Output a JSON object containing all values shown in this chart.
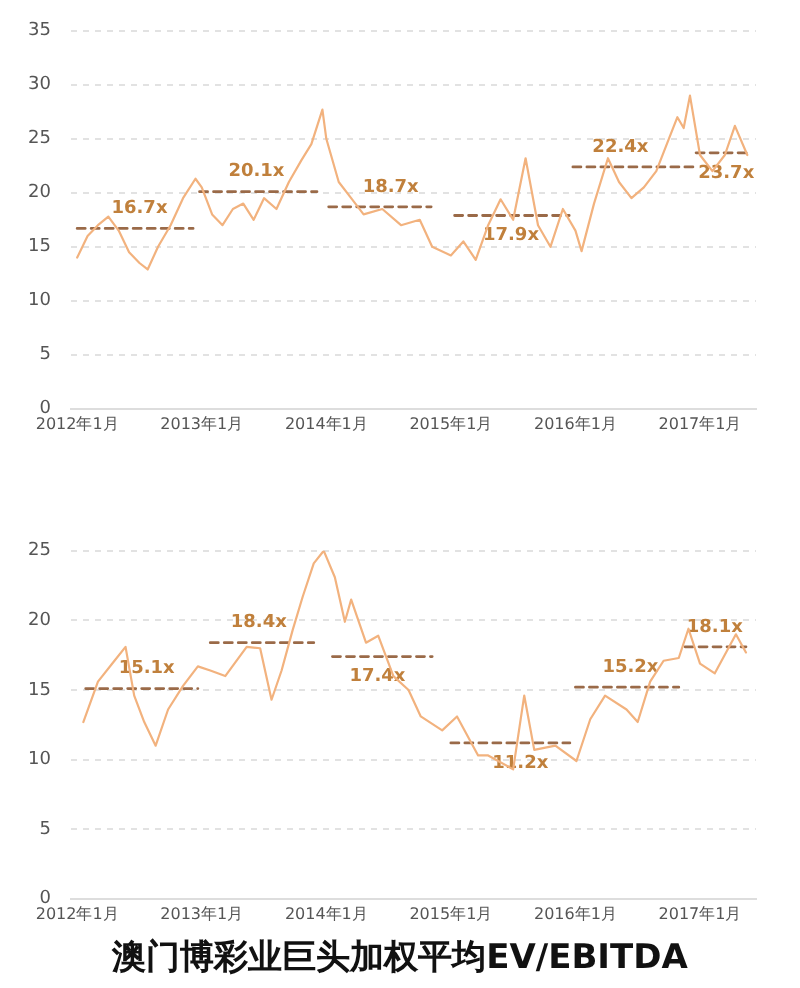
{
  "chart_data": [
    {
      "type": "line",
      "xlim": [
        "2011-12-13",
        "2017-06-13"
      ],
      "xticks": [
        {
          "value": "2012-01",
          "label": "2012年1月"
        },
        {
          "value": "2013-01",
          "label": "2013年1月"
        },
        {
          "value": "2014-01",
          "label": "2014年1月"
        },
        {
          "value": "2015-01",
          "label": "2015年1月"
        },
        {
          "value": "2016-01",
          "label": "2016年1月"
        },
        {
          "value": "2017-01",
          "label": "2017年1月"
        }
      ],
      "ylim": [
        0,
        35
      ],
      "yticks": [
        0,
        5,
        10,
        15,
        20,
        25,
        30,
        35
      ],
      "grid": "y",
      "marker": "none",
      "series": [
        {
          "type": "line",
          "color": "#f2b27e",
          "line_style": "solid",
          "x": [
            "2012-01-01",
            "2012-02-01",
            "2012-03-01",
            "2012-04-01",
            "2012-05-01",
            "2012-06-01",
            "2012-07-01",
            "2012-07-25",
            "2012-08-25",
            "2012-10-01",
            "2012-11-07",
            "2012-12-13",
            "2013-01-01",
            "2013-02-01",
            "2013-03-01",
            "2013-04-01",
            "2013-05-01",
            "2013-06-01",
            "2013-07-01",
            "2013-08-07",
            "2013-09-13",
            "2013-10-19",
            "2013-11-18",
            "2013-12-20",
            "2014-01-01",
            "2014-02-07",
            "2014-03-13",
            "2014-04-19",
            "2014-06-13",
            "2014-08-07",
            "2014-10-01",
            "2014-11-07",
            "2015-01-01",
            "2015-02-07",
            "2015-03-13",
            "2015-04-19",
            "2015-05-25",
            "2015-07-01",
            "2015-08-07",
            "2015-09-13",
            "2015-10-19",
            "2015-11-25",
            "2016-01-01",
            "2016-01-19",
            "2016-02-25",
            "2016-04-05",
            "2016-05-07",
            "2016-06-13",
            "2016-07-19",
            "2016-08-25",
            "2016-10-01",
            "2016-10-26",
            "2016-11-14",
            "2016-12-02",
            "2017-01-01",
            "2017-02-07",
            "2017-03-13",
            "2017-04-12",
            "2017-05-18"
          ],
          "values": [
            14.0,
            16.0,
            17.0,
            17.8,
            16.5,
            14.5,
            13.5,
            12.9,
            15.0,
            17.0,
            19.5,
            21.3,
            20.5,
            18.0,
            17.0,
            18.5,
            19.0,
            17.5,
            19.5,
            18.5,
            21.0,
            23.0,
            24.5,
            27.7,
            25.0,
            21.0,
            19.5,
            18.0,
            18.5,
            17.0,
            17.5,
            15.0,
            14.2,
            15.5,
            13.8,
            17.0,
            19.4,
            17.5,
            23.2,
            17.0,
            15.0,
            18.5,
            16.5,
            14.6,
            19.0,
            23.2,
            21.0,
            19.5,
            20.5,
            22.0,
            25.0,
            27.0,
            26.0,
            29.0,
            23.5,
            22.0,
            23.5,
            26.2,
            23.5
          ]
        },
        {
          "type": "line",
          "color": "#9a6a48",
          "line_style": "dashed",
          "x": [
            "2012-01-01",
            "2012-12-06",
            "2012-12-13",
            "2012-12-25",
            "2013-12-04",
            "2013-12-13",
            "2014-01-08",
            "2014-11-04",
            "2014-11-25",
            "2015-01-12",
            "2015-12-13",
            "2015-12-20",
            "2015-12-24",
            "2016-12-13",
            "2016-12-17",
            "2016-12-20",
            "2017-05-18"
          ],
          "values": [
            16.7,
            16.7,
            null,
            20.1,
            20.1,
            null,
            18.7,
            18.7,
            null,
            17.9,
            17.9,
            null,
            22.4,
            22.4,
            null,
            23.7,
            23.7
          ]
        }
      ],
      "annotations": [
        {
          "text": "16.7x",
          "x": "2012-07-01",
          "y": 16.7
        },
        {
          "text": "20.1x",
          "x": "2013-06-09",
          "y": 20.1
        },
        {
          "text": "18.7x",
          "x": "2014-07-07",
          "y": 18.7
        },
        {
          "text": "17.9x",
          "x": "2015-06-25",
          "y": 17.9
        },
        {
          "text": "22.4x",
          "x": "2016-05-11",
          "y": 22.4
        },
        {
          "text": "23.7x",
          "x": "2017-03-17",
          "y": 23.7
        }
      ]
    },
    {
      "type": "line",
      "title": "澳门博彩业巨头加权平均EV/EBITDA",
      "xlim": [
        "2011-12-13",
        "2017-06-13"
      ],
      "xticks": [
        {
          "value": "2012-01",
          "label": "2012年1月"
        },
        {
          "value": "2013-01",
          "label": "2013年1月"
        },
        {
          "value": "2014-01",
          "label": "2014年1月"
        },
        {
          "value": "2015-01",
          "label": "2015年1月"
        },
        {
          "value": "2016-01",
          "label": "2016年1月"
        },
        {
          "value": "2017-01",
          "label": "2017年1月"
        }
      ],
      "ylim": [
        0,
        25
      ],
      "yticks": [
        0,
        5,
        10,
        15,
        20,
        25
      ],
      "grid": "y",
      "marker": "none",
      "series": [
        {
          "type": "line",
          "color": "#f2b27e",
          "line_style": "solid",
          "x": [
            "2012-01-19",
            "2012-03-01",
            "2012-04-19",
            "2012-05-21",
            "2012-06-16",
            "2012-07-15",
            "2012-08-18",
            "2012-09-24",
            "2012-11-07",
            "2012-12-20",
            "2013-01-26",
            "2013-03-09",
            "2013-05-11",
            "2013-06-20",
            "2013-07-23",
            "2013-08-22",
            "2013-09-24",
            "2013-10-23",
            "2013-11-25",
            "2013-12-24",
            "2014-01-26",
            "2014-02-25",
            "2014-03-13",
            "2014-04-26",
            "2014-06-01",
            "2014-07-15",
            "2014-08-29",
            "2014-10-04",
            "2014-12-06",
            "2015-01-19",
            "2015-03-20",
            "2015-04-19",
            "2015-07-01",
            "2015-08-03",
            "2015-09-02",
            "2015-11-03",
            "2016-01-04",
            "2016-02-14",
            "2016-03-27",
            "2016-05-29",
            "2016-07-01",
            "2016-08-07",
            "2016-09-16",
            "2016-10-30",
            "2016-11-28",
            "2017-01-01",
            "2017-02-14",
            "2017-04-15",
            "2017-05-14"
          ],
          "values": [
            12.7,
            15.6,
            17.1,
            18.1,
            14.6,
            12.7,
            11.0,
            13.6,
            15.3,
            16.7,
            16.4,
            16.0,
            18.1,
            18.0,
            14.3,
            16.4,
            19.3,
            21.7,
            24.1,
            25.0,
            23.1,
            19.9,
            21.5,
            18.4,
            18.9,
            16.0,
            15.0,
            13.1,
            12.1,
            13.1,
            10.3,
            10.3,
            9.3,
            14.6,
            10.7,
            11.0,
            9.9,
            12.9,
            14.6,
            13.6,
            12.7,
            15.6,
            17.1,
            17.3,
            19.4,
            16.9,
            16.2,
            19.0,
            17.7
          ]
        },
        {
          "type": "line",
          "color": "#9a6a48",
          "line_style": "dashed",
          "x": [
            "2012-01-26",
            "2012-12-20",
            "2012-12-28",
            "2013-01-26",
            "2013-11-25",
            "2013-12-13",
            "2014-01-19",
            "2014-11-07",
            "2014-11-25",
            "2015-01-01",
            "2015-12-15",
            "2015-12-24",
            "2016-01-01",
            "2016-10-30",
            "2016-11-07",
            "2016-11-18",
            "2017-05-14"
          ],
          "values": [
            15.1,
            15.1,
            null,
            18.4,
            18.4,
            null,
            17.4,
            17.4,
            null,
            11.2,
            11.2,
            null,
            15.2,
            15.2,
            null,
            18.1,
            18.1
          ]
        }
      ],
      "annotations": [
        {
          "text": "15.1x",
          "x": "2012-07-22",
          "y": 15.1
        },
        {
          "text": "18.4x",
          "x": "2013-06-16",
          "y": 18.4
        },
        {
          "text": "17.4x",
          "x": "2014-05-29",
          "y": 17.4
        },
        {
          "text": "11.2x",
          "x": "2015-07-22",
          "y": 11.2
        },
        {
          "text": "15.2x",
          "x": "2016-06-10",
          "y": 15.2
        },
        {
          "text": "18.1x",
          "x": "2017-02-14",
          "y": 18.1
        }
      ]
    }
  ]
}
